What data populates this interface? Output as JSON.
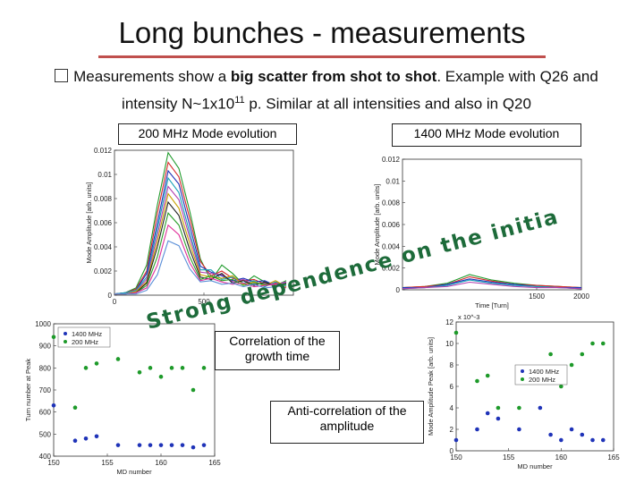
{
  "title": "Long bunches - measurements",
  "bullet": {
    "pre": "Measurements show a ",
    "bold": "big scatter from shot to shot",
    "mid": ". Example with Q26 and intensity N~1x10",
    "sup": "11",
    "post": " p. Similar at all intensities and also in Q20"
  },
  "labels": {
    "mode200": "200 MHz Mode evolution",
    "mode1400": "1400 MHz Mode evolution",
    "correlation": "Correlation of the growth time",
    "anticorrelation": "Anti-correlation of the amplitude",
    "slanted_left": "Strong dependence on the initial distribution"
  },
  "colors": {
    "accent": "#c0504d",
    "green": "#1e9a2a",
    "blue": "#1f33b8",
    "slanted": "#1d6b3a"
  },
  "chart_data": [
    {
      "type": "line",
      "title": "",
      "xlabel": "",
      "ylabel": "Mode Amplitude [arb. units]",
      "xlim": [
        0,
        1000
      ],
      "ylim": [
        0,
        0.012
      ],
      "x_ticks": [
        "0",
        "500"
      ],
      "y_ticks": [
        "0",
        "0.002",
        "0.004",
        "0.006",
        "0.008",
        "0.01",
        "0.012"
      ],
      "x": [
        0,
        60,
        120,
        180,
        240,
        300,
        360,
        420,
        480,
        540,
        600,
        660,
        720,
        780,
        840,
        900,
        960
      ],
      "series": [
        {
          "color": "#1e9a2a",
          "values": [
            0.0001,
            0.0002,
            0.0006,
            0.0025,
            0.0075,
            0.0118,
            0.0105,
            0.007,
            0.003,
            0.0012,
            0.0025,
            0.0018,
            0.0009,
            0.0016,
            0.0011,
            0.0008,
            0.0012
          ]
        },
        {
          "color": "#d62728",
          "values": [
            0.0001,
            0.0002,
            0.0005,
            0.002,
            0.0068,
            0.011,
            0.0098,
            0.0064,
            0.0028,
            0.0016,
            0.002,
            0.0014,
            0.0012,
            0.0013,
            0.0009,
            0.001,
            0.0009
          ]
        },
        {
          "color": "#1f33b8",
          "values": [
            0.0001,
            0.0002,
            0.0004,
            0.0018,
            0.006,
            0.0103,
            0.0092,
            0.0058,
            0.0024,
            0.0019,
            0.0016,
            0.0012,
            0.0014,
            0.0011,
            0.0012,
            0.0008,
            0.001
          ]
        },
        {
          "color": "#17a2b8",
          "values": [
            0.0001,
            0.0002,
            0.0004,
            0.0015,
            0.0055,
            0.0097,
            0.0085,
            0.0052,
            0.0021,
            0.0021,
            0.0013,
            0.0015,
            0.001,
            0.0012,
            0.0007,
            0.0011,
            0.0008
          ]
        },
        {
          "color": "#b040b0",
          "values": [
            0.0001,
            0.0001,
            0.0003,
            0.0013,
            0.005,
            0.009,
            0.0079,
            0.0048,
            0.0019,
            0.0018,
            0.0017,
            0.0011,
            0.0013,
            0.0009,
            0.001,
            0.0009,
            0.0011
          ]
        },
        {
          "color": "#c8a000",
          "values": [
            0.0001,
            0.0001,
            0.0003,
            0.0011,
            0.0045,
            0.0084,
            0.0072,
            0.0043,
            0.0017,
            0.0015,
            0.0014,
            0.0016,
            0.0009,
            0.0011,
            0.0008,
            0.0012,
            0.0007
          ]
        },
        {
          "color": "#222222",
          "values": [
            0.0001,
            0.0001,
            0.0002,
            0.001,
            0.004,
            0.0077,
            0.0066,
            0.0038,
            0.0015,
            0.0013,
            0.0018,
            0.001,
            0.0012,
            0.0008,
            0.0011,
            0.0007,
            0.001
          ]
        },
        {
          "color": "#2ca02c",
          "values": [
            0.0001,
            0.0001,
            0.0002,
            0.0008,
            0.0032,
            0.0068,
            0.0058,
            0.0032,
            0.0013,
            0.0016,
            0.0012,
            0.0013,
            0.0008,
            0.001,
            0.0009,
            0.0008,
            0.0009
          ]
        },
        {
          "color": "#e0309a",
          "values": [
            0.0001,
            0.0001,
            0.0002,
            0.0006,
            0.0025,
            0.0058,
            0.005,
            0.0027,
            0.0012,
            0.0014,
            0.0011,
            0.0009,
            0.001,
            0.0007,
            0.0008,
            0.0009,
            0.0006
          ]
        },
        {
          "color": "#5b8fd8",
          "values": [
            0.0001,
            0.0001,
            0.0001,
            0.0004,
            0.0017,
            0.0045,
            0.0041,
            0.0022,
            0.0011,
            0.0012,
            0.0009,
            0.001,
            0.0007,
            0.0009,
            0.0006,
            0.0007,
            0.0008
          ]
        }
      ]
    },
    {
      "type": "line",
      "title": "",
      "xlabel": "Time [Turn]",
      "ylabel": "Mode Amplitude [arb. units]",
      "xlim": [
        0,
        2000
      ],
      "ylim": [
        0,
        0.012
      ],
      "x_ticks": [
        "1500",
        "2000"
      ],
      "y_ticks": [
        "0",
        "0.002",
        "0.004",
        "0.006",
        "0.008",
        "0.01",
        "0.012"
      ],
      "x": [
        0,
        250,
        500,
        750,
        1000,
        1250,
        1500,
        1750,
        2000
      ],
      "series": [
        {
          "color": "#1e9a2a",
          "values": [
            0.0002,
            0.0003,
            0.0006,
            0.0014,
            0.0009,
            0.0006,
            0.0004,
            0.0003,
            0.0002
          ]
        },
        {
          "color": "#d62728",
          "values": [
            0.0002,
            0.0003,
            0.0005,
            0.0012,
            0.0008,
            0.0005,
            0.0004,
            0.0003,
            0.0002
          ]
        },
        {
          "color": "#1f33b8",
          "values": [
            0.0002,
            0.0002,
            0.0005,
            0.001,
            0.0007,
            0.0005,
            0.0003,
            0.0002,
            0.0002
          ]
        },
        {
          "color": "#17a2b8",
          "values": [
            0.0001,
            0.0002,
            0.0004,
            0.0009,
            0.0006,
            0.0004,
            0.0003,
            0.0002,
            0.0001
          ]
        },
        {
          "color": "#b040b0",
          "values": [
            0.0001,
            0.0002,
            0.0003,
            0.0007,
            0.0005,
            0.0003,
            0.0002,
            0.0002,
            0.0001
          ]
        }
      ]
    },
    {
      "type": "scatter",
      "title": "",
      "xlabel": "MD number",
      "ylabel": "Turn number at Peak",
      "xlim": [
        150,
        165
      ],
      "ylim": [
        400,
        1000
      ],
      "x_ticks": [
        "150",
        "155",
        "160",
        "165"
      ],
      "y_ticks": [
        "400",
        "500",
        "600",
        "700",
        "800",
        "900",
        "1000"
      ],
      "legend": "top-left",
      "series": [
        {
          "name": "1400 MHz",
          "color": "#1f33b8",
          "x": [
            150,
            152,
            153,
            154,
            156,
            158,
            159,
            160,
            161,
            162,
            163,
            164
          ],
          "y": [
            630,
            470,
            480,
            490,
            450,
            450,
            450,
            450,
            450,
            450,
            440,
            450
          ]
        },
        {
          "name": "200 MHz",
          "color": "#1e9a2a",
          "x": [
            150,
            152,
            153,
            154,
            156,
            158,
            159,
            160,
            161,
            162,
            163,
            164
          ],
          "y": [
            940,
            620,
            800,
            820,
            840,
            780,
            800,
            760,
            800,
            800,
            700,
            800
          ]
        }
      ]
    },
    {
      "type": "scatter",
      "title": "",
      "xlabel": "MD number",
      "ylabel": "Mode Amplitude Peak [arb. units]",
      "y_scale_note": "x 10^-3",
      "xlim": [
        150,
        165
      ],
      "ylim": [
        0,
        12
      ],
      "x_ticks": [
        "150",
        "155",
        "160",
        "165"
      ],
      "y_ticks": [
        "0",
        "2",
        "4",
        "6",
        "8",
        "10",
        "12"
      ],
      "legend": "center",
      "series": [
        {
          "name": "1400 MHz",
          "color": "#1f33b8",
          "x": [
            150,
            152,
            153,
            154,
            156,
            158,
            159,
            160,
            161,
            162,
            163,
            164
          ],
          "y": [
            1,
            2,
            3.5,
            3,
            2,
            4,
            1.5,
            1,
            2,
            1.5,
            1,
            1
          ]
        },
        {
          "name": "200 MHz",
          "color": "#1e9a2a",
          "x": [
            150,
            152,
            153,
            154,
            156,
            158,
            159,
            160,
            161,
            162,
            163,
            164
          ],
          "y": [
            11,
            6.5,
            7,
            4,
            4,
            7,
            9,
            6,
            8,
            9,
            10,
            10
          ]
        }
      ]
    }
  ]
}
